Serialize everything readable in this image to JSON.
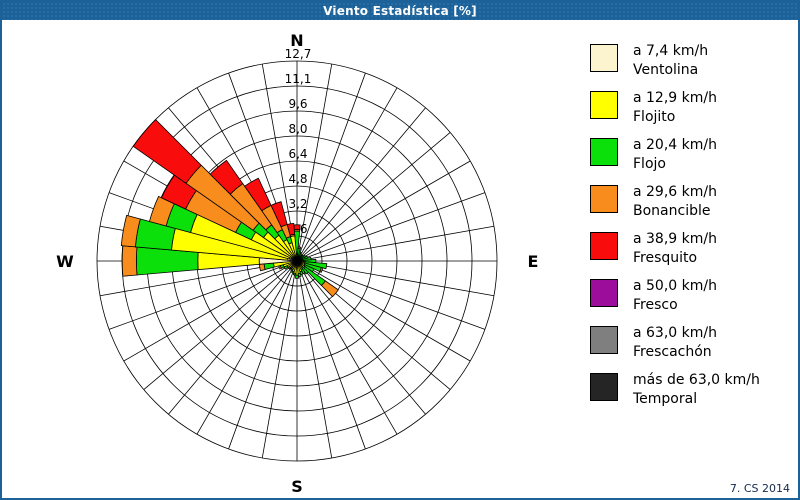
{
  "window": {
    "title": "Viento Estadística [%]"
  },
  "footer": {
    "credit": "7. CS 2014"
  },
  "compass": {
    "n": "N",
    "e": "E",
    "s": "S",
    "w": "W"
  },
  "chart_data": {
    "type": "bar",
    "variant": "polar-wind-rose-stacked",
    "title": "Viento Estadística [%]",
    "units": "percent",
    "direction_step_deg": 10,
    "directions_start": "N",
    "grid": {
      "spokes": 36,
      "rings": 8,
      "line_color": "#000000"
    },
    "radial_axis": {
      "max": 12.7,
      "ring_step": 1.5875,
      "tick_labels": [
        "1,6",
        "3,2",
        "4,8",
        "6,4",
        "8,0",
        "9,6",
        "11,1",
        "12,7"
      ]
    },
    "legend_position": "right",
    "categories": [
      {
        "speed": "a 7,4 km/h",
        "name": "Ventolina",
        "color": "#FBF4CF",
        "values": [
          0.1,
          0.05,
          0.05,
          0.05,
          0.05,
          0.05,
          0.05,
          0.05,
          0.05,
          0.1,
          0.1,
          0.1,
          0.1,
          0.1,
          0.1,
          0.1,
          0.1,
          0.1,
          0.15,
          0.15,
          0.1,
          0.1,
          0.1,
          0.1,
          0.15,
          0.2,
          0.3,
          2.4,
          0.6,
          0.5,
          0.4,
          0.3,
          0.2,
          0.15,
          0.1,
          0.1
        ]
      },
      {
        "speed": "a 12,9 km/h",
        "name": "Flojito",
        "color": "#FFFF00",
        "values": [
          0.3,
          0.25,
          0.2,
          0.25,
          0.15,
          0.15,
          0.2,
          0.25,
          0.25,
          0.3,
          0.4,
          0.4,
          0.45,
          0.5,
          0.4,
          0.5,
          0.6,
          0.7,
          0.75,
          0.65,
          0.6,
          0.5,
          0.4,
          0.5,
          0.55,
          0.7,
          1.2,
          3.9,
          7.4,
          6.5,
          2.8,
          2.3,
          1.8,
          1.35,
          1.1,
          1.5
        ]
      },
      {
        "speed": "a 20,4 km/h",
        "name": "Flojo",
        "color": "#0BE00B",
        "values": [
          1.5,
          0.5,
          0.35,
          0.2,
          0.2,
          0.3,
          0.35,
          0.4,
          0.6,
          0.8,
          1.4,
          1.1,
          0.65,
          1.6,
          0.5,
          0.3,
          0.2,
          0.2,
          0.2,
          0.1,
          0.1,
          0.1,
          0.1,
          0.1,
          0.2,
          0.2,
          0.6,
          3.9,
          2.3,
          1.6,
          1.1,
          0.8,
          0.8,
          0.7,
          0.4,
          0.0
        ]
      },
      {
        "speed": "a 29,6 km/h",
        "name": "Bonancible",
        "color": "#F88C1C",
        "values": [
          0.1,
          0.1,
          0,
          0,
          0,
          0,
          0,
          0,
          0,
          0,
          0,
          0.1,
          0,
          1.0,
          0,
          0,
          0,
          0,
          0,
          0,
          0,
          0,
          0,
          0,
          0,
          0.1,
          0.3,
          0.9,
          0.9,
          1.1,
          3.5,
          5.2,
          3.2,
          1.7,
          0.8,
          0.1
        ]
      },
      {
        "speed": "a 38,9 km/h",
        "name": "Fresquito",
        "color": "#F80C0C",
        "values": [
          0.3,
          0,
          0,
          0,
          0,
          0,
          0,
          0,
          0,
          0,
          0,
          0,
          0,
          0,
          0,
          0,
          0,
          0,
          0,
          0,
          0,
          0,
          0,
          0,
          0,
          0,
          0,
          0,
          0,
          0,
          1.7,
          4.1,
          1.8,
          1.9,
          1.5,
          0.7
        ]
      },
      {
        "speed": "a 50,0 km/h",
        "name": "Fresco",
        "color": "#9C0D9C",
        "values": []
      },
      {
        "speed": "a 63,0 km/h",
        "name": "Frescachón",
        "color": "#7F7F7F",
        "values": []
      },
      {
        "speed": "más de 63,0 km/h",
        "name": "Temporal",
        "color": "#252525",
        "values": []
      }
    ]
  }
}
